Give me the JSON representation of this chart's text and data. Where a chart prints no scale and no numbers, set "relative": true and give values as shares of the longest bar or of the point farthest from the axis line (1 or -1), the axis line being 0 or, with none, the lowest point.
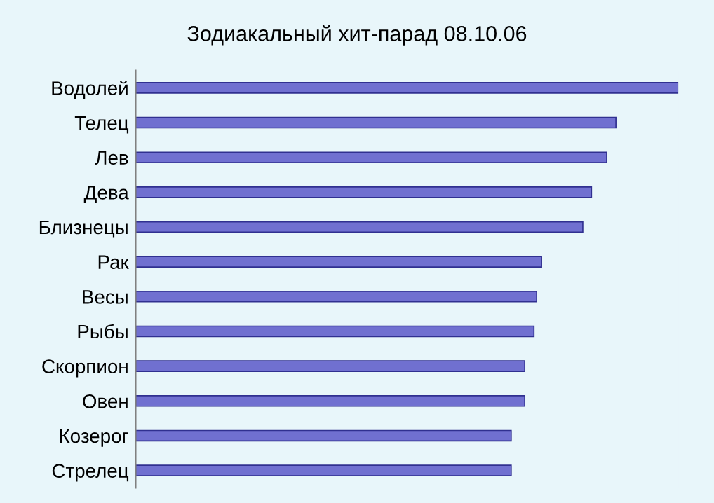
{
  "chart_data": {
    "type": "bar",
    "orientation": "horizontal",
    "relative": true,
    "title": "Зодиакальный хит-парад 08.10.06",
    "categories": [
      "Водолей",
      "Телец",
      "Лев",
      "Дева",
      "Близнецы",
      "Рак",
      "Весы",
      "Рыбы",
      "Скорпион",
      "Овен",
      "Козерог",
      "Стрелец"
    ],
    "values": [
      1,
      0.885,
      0.868,
      0.84,
      0.824,
      0.748,
      0.739,
      0.734,
      0.717,
      0.717,
      0.692,
      0.692
    ],
    "color": "#7070d0",
    "grid": false,
    "legend": false
  }
}
